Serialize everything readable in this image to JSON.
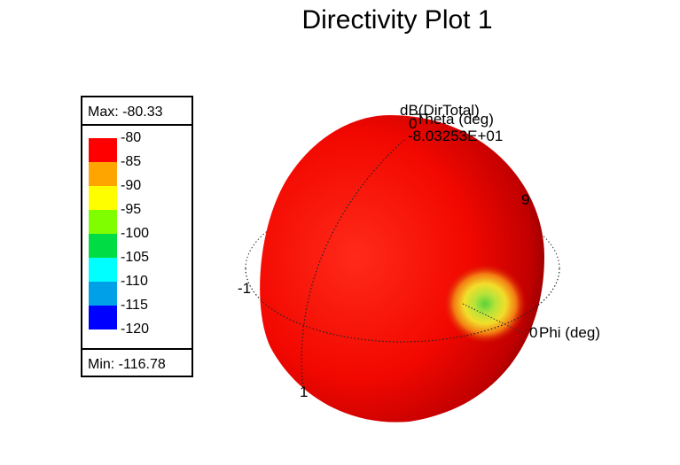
{
  "chart_data": {
    "type": "3d-polar",
    "title": "Directivity Plot 1",
    "quantity": "dB(DirTotal)",
    "value_readout": "-8.03253E+01",
    "axis_labels": {
      "theta": "Theta (deg)",
      "phi": "Phi (deg)",
      "theta_zero": "0",
      "phi_zero": "0",
      "phi_partial": "-1",
      "theta_partial": "1",
      "side_partial": "9"
    },
    "legend": {
      "max_label": "Max: -80.33",
      "min_label": "Min: -116.78",
      "ticks": [
        "-80",
        "-85",
        "-90",
        "-95",
        "-100",
        "-105",
        "-110",
        "-115",
        "-120"
      ],
      "colors": [
        "#fe0000",
        "#ffa500",
        "#fefe00",
        "#7ffe00",
        "#00dd44",
        "#00ffff",
        "#00a0e8",
        "#0000ff"
      ]
    },
    "max": -80.33,
    "min": -116.78
  }
}
